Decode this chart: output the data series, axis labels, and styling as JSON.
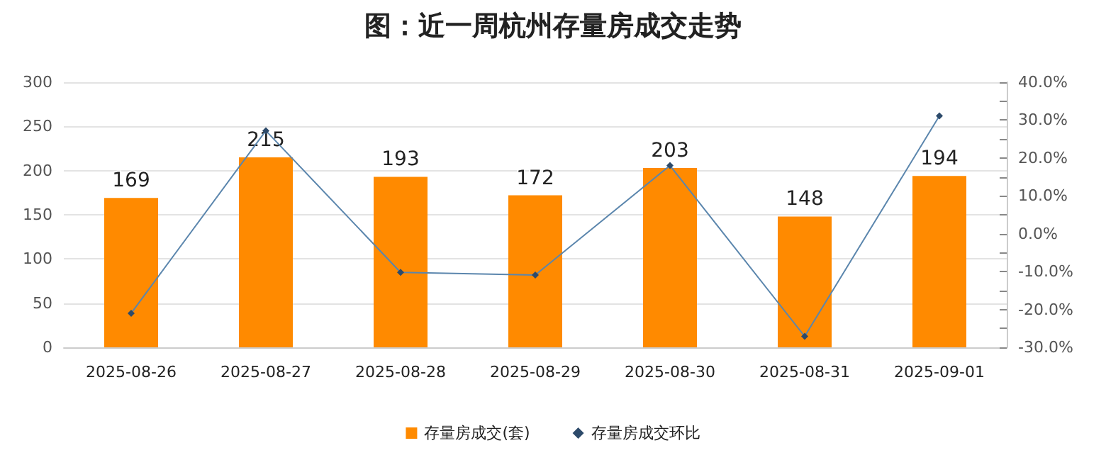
{
  "chart_data": {
    "type": "bar",
    "title": "图：近一周杭州存量房成交走势",
    "categories": [
      "2025-08-26",
      "2025-08-27",
      "2025-08-28",
      "2025-08-29",
      "2025-08-30",
      "2025-08-31",
      "2025-09-01"
    ],
    "series": [
      {
        "name": "存量房成交(套)",
        "color": "#ff8a00",
        "values": [
          169,
          215,
          193,
          172,
          203,
          148,
          194
        ],
        "value_labels": [
          "169",
          "215",
          "193",
          "172",
          "203",
          "148",
          "194"
        ]
      },
      {
        "name": "存量房成交环比",
        "type": "line",
        "axis": "y2",
        "color": "#5b86ad",
        "marker": "diamond",
        "values": [
          -21.0,
          27.2,
          -10.2,
          -10.9,
          18.0,
          -27.1,
          31.1
        ]
      }
    ],
    "ylim": [
      0,
      300
    ],
    "yticks": [
      0,
      50,
      100,
      150,
      200,
      250,
      300
    ],
    "y2lim": [
      -30,
      40
    ],
    "y2ticks": [
      {
        "value": -30,
        "label": "-30.0%"
      },
      {
        "value": -25,
        "label": null
      },
      {
        "value": -20,
        "label": "-20.0%"
      },
      {
        "value": -15,
        "label": null
      },
      {
        "value": -10,
        "label": "-10.0%"
      },
      {
        "value": -5,
        "label": null
      },
      {
        "value": 0,
        "label": "0.0%"
      },
      {
        "value": 5,
        "label": null
      },
      {
        "value": 10,
        "label": "10.0%"
      },
      {
        "value": 15,
        "label": null
      },
      {
        "value": 20,
        "label": "20.0%"
      },
      {
        "value": 25,
        "label": null
      },
      {
        "value": 30,
        "label": "30.0%"
      },
      {
        "value": 35,
        "label": null
      },
      {
        "value": 40,
        "label": "40.0%"
      }
    ],
    "grid": "y",
    "legend": "bottom"
  }
}
